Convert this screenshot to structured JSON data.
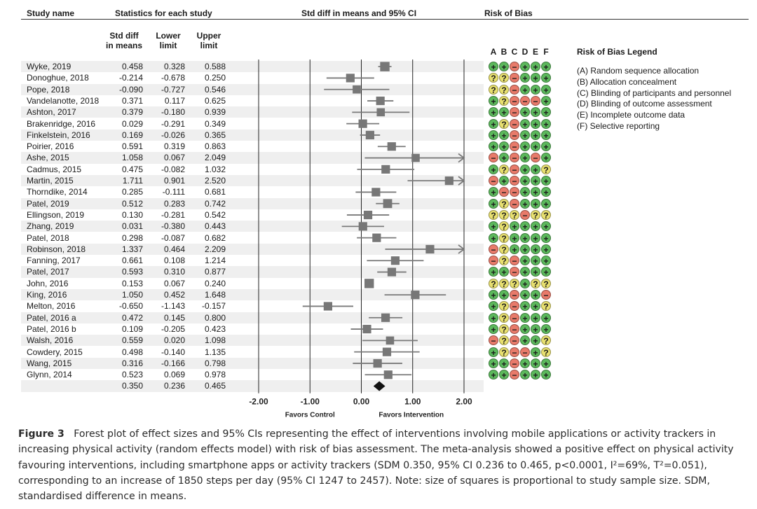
{
  "headers": {
    "study": "Study name",
    "stats": "Statistics for each study",
    "ci": "Std diff in means and 95% CI",
    "rob": "Risk of Bias",
    "smd": "Std diff\nin means",
    "lower": "Lower\nlimit",
    "upper": "Upper\nlimit"
  },
  "colors": {
    "marker": "#777777",
    "line": "#7a7a7a",
    "band": "#efefef",
    "plus": "#5cb85c",
    "minus": "#e87a6a",
    "question": "#e8e070"
  },
  "chart_data": {
    "type": "forest",
    "title": "Std diff in means and 95% CI",
    "xlim": [
      -2.0,
      2.0
    ],
    "xticks": [
      "-2.00",
      "-1.00",
      "0.00",
      "1.00",
      "2.00"
    ],
    "xtick_values": [
      -2,
      -1,
      0,
      1,
      2
    ],
    "xlabel_left": "Favors Control",
    "xlabel_right": "Favors Intervention",
    "studies": [
      {
        "name": "Wyke, 2019",
        "smd": "0.458",
        "lower": "0.328",
        "upper": "0.588",
        "weight": 0.9
      },
      {
        "name": "Donoghue, 2018",
        "smd": "-0.214",
        "lower": "-0.678",
        "upper": "0.250",
        "weight": 0.7
      },
      {
        "name": "Pope, 2018",
        "smd": "-0.090",
        "lower": "-0.727",
        "upper": "0.546",
        "weight": 0.6
      },
      {
        "name": "Vandelanotte, 2018",
        "smd": "0.371",
        "lower": "0.117",
        "upper": "0.625",
        "weight": 0.7
      },
      {
        "name": "Ashton, 2017",
        "smd": "0.379",
        "lower": "-0.180",
        "upper": "0.939",
        "weight": 0.6
      },
      {
        "name": "Brakenridge, 2016",
        "smd": "0.029",
        "lower": "-0.291",
        "upper": "0.349",
        "weight": 0.7
      },
      {
        "name": "Finkelstein, 2016",
        "smd": "0.169",
        "lower": "-0.026",
        "upper": "0.365",
        "weight": 0.7
      },
      {
        "name": "Poirier, 2016",
        "smd": "0.591",
        "lower": "0.319",
        "upper": "0.863",
        "weight": 0.7
      },
      {
        "name": "Ashe, 2015",
        "smd": "1.058",
        "lower": "0.067",
        "upper": "2.049",
        "weight": 0.6
      },
      {
        "name": "Cadmus, 2015",
        "smd": "0.475",
        "lower": "-0.082",
        "upper": "1.032",
        "weight": 0.7
      },
      {
        "name": "Martin, 2015",
        "smd": "1.711",
        "lower": "0.901",
        "upper": "2.520",
        "weight": 0.7
      },
      {
        "name": "Thorndike, 2014",
        "smd": "0.285",
        "lower": "-0.111",
        "upper": "0.681",
        "weight": 0.7
      },
      {
        "name": "Patel, 2019",
        "smd": "0.512",
        "lower": "0.283",
        "upper": "0.742",
        "weight": 0.8
      },
      {
        "name": "Ellingson, 2019",
        "smd": "0.130",
        "lower": "-0.281",
        "upper": "0.542",
        "weight": 0.7
      },
      {
        "name": "Zhang, 2019",
        "smd": "0.031",
        "lower": "-0.380",
        "upper": "0.443",
        "weight": 0.7
      },
      {
        "name": "Patel, 2018",
        "smd": "0.298",
        "lower": "-0.087",
        "upper": "0.682",
        "weight": 0.7
      },
      {
        "name": "Robinson, 2018",
        "smd": "1.337",
        "lower": "0.464",
        "upper": "2.209",
        "weight": 0.7
      },
      {
        "name": "Fanning, 2017",
        "smd": "0.661",
        "lower": "0.108",
        "upper": "1.214",
        "weight": 0.7
      },
      {
        "name": "Patel, 2017",
        "smd": "0.593",
        "lower": "0.310",
        "upper": "0.877",
        "weight": 0.7
      },
      {
        "name": "John, 2016",
        "smd": "0.153",
        "lower": "0.067",
        "upper": "0.240",
        "weight": 0.9
      },
      {
        "name": "King, 2016",
        "smd": "1.050",
        "lower": "0.452",
        "upper": "1.648",
        "weight": 0.7
      },
      {
        "name": "Melton, 2016",
        "smd": "-0.650",
        "lower": "-1.143",
        "upper": "-0.157",
        "weight": 0.7
      },
      {
        "name": "Patel, 2016 a",
        "smd": "0.472",
        "lower": "0.145",
        "upper": "0.800",
        "weight": 0.7
      },
      {
        "name": "Patel, 2016 b",
        "smd": "0.109",
        "lower": "-0.205",
        "upper": "0.423",
        "weight": 0.7
      },
      {
        "name": "Walsh, 2016",
        "smd": "0.559",
        "lower": "0.020",
        "upper": "1.098",
        "weight": 0.6
      },
      {
        "name": "Cowdery, 2015",
        "smd": "0.498",
        "lower": "-0.140",
        "upper": "1.135",
        "weight": 0.7
      },
      {
        "name": "Wang, 2015",
        "smd": "0.316",
        "lower": "-0.166",
        "upper": "0.798",
        "weight": 0.7
      },
      {
        "name": "Glynn, 2014",
        "smd": "0.523",
        "lower": "0.069",
        "upper": "0.978",
        "weight": 0.7
      }
    ],
    "summary": {
      "smd": "0.350",
      "lower": "0.236",
      "upper": "0.465"
    }
  },
  "rob": {
    "columns": [
      "A",
      "B",
      "C",
      "D",
      "E",
      "F"
    ],
    "rows": [
      [
        "+",
        "+",
        "-",
        "+",
        "+",
        "+"
      ],
      [
        "?",
        "?",
        "-",
        "+",
        "+",
        "+"
      ],
      [
        "?",
        "?",
        "-",
        "+",
        "+",
        "+"
      ],
      [
        "+",
        "?",
        "-",
        "-",
        "-",
        "+"
      ],
      [
        "+",
        "+",
        "-",
        "+",
        "+",
        "+"
      ],
      [
        "+",
        "?",
        "-",
        "+",
        "+",
        "+"
      ],
      [
        "+",
        "+",
        "-",
        "+",
        "+",
        "+"
      ],
      [
        "+",
        "+",
        "-",
        "+",
        "+",
        "+"
      ],
      [
        "-",
        "+",
        "-",
        "+",
        "-",
        "+"
      ],
      [
        "+",
        "?",
        "-",
        "+",
        "+",
        "?"
      ],
      [
        "-",
        "+",
        "-",
        "+",
        "+",
        "+"
      ],
      [
        "+",
        "-",
        "-",
        "+",
        "+",
        "+"
      ],
      [
        "+",
        "?",
        "-",
        "+",
        "+",
        "+"
      ],
      [
        "?",
        "?",
        "?",
        "-",
        "?",
        "?"
      ],
      [
        "+",
        "?",
        "+",
        "+",
        "+",
        "+"
      ],
      [
        "+",
        "?",
        "+",
        "+",
        "+",
        "+"
      ],
      [
        "-",
        "?",
        "+",
        "+",
        "+",
        "+"
      ],
      [
        "-",
        "?",
        "-",
        "+",
        "+",
        "+"
      ],
      [
        "+",
        "+",
        "-",
        "+",
        "+",
        "+"
      ],
      [
        "?",
        "?",
        "?",
        "+",
        "?",
        "?"
      ],
      [
        "+",
        "+",
        "-",
        "+",
        "+",
        "-"
      ],
      [
        "+",
        "?",
        "-",
        "+",
        "+",
        "?"
      ],
      [
        "+",
        "?",
        "-",
        "+",
        "+",
        "+"
      ],
      [
        "+",
        "?",
        "-",
        "+",
        "+",
        "+"
      ],
      [
        "-",
        "?",
        "-",
        "+",
        "+",
        "?"
      ],
      [
        "+",
        "?",
        "-",
        "-",
        "+",
        "?"
      ],
      [
        "+",
        "+",
        "-",
        "+",
        "+",
        "+"
      ],
      [
        "+",
        "+",
        "-",
        "+",
        "+",
        "+"
      ]
    ]
  },
  "legend": {
    "title": "Risk of Bias Legend",
    "items": [
      "(A) Random sequence allocation",
      "(B) Allocation concealment",
      "(C) Blinding of participants and personnel",
      "(D) Blinding of outcome assessment",
      "(E) Incomplete outcome data",
      "(F) Selective reporting"
    ]
  },
  "caption": {
    "label": "Figure 3",
    "text": "Forest plot of effect sizes and 95% CIs representing the effect of interventions involving mobile applications or activity trackers in increasing physical activity (random effects model) with risk of bias assessment. The meta-analysis showed a positive effect on physical activity favouring interventions, including smartphone apps or activity trackers (SDM 0.350, 95% CI 0.236 to 0.465, p<0.0001, I²=69%, T²=0.051), corresponding to an increase of 1850 steps per day (95% CI 1247 to 2457). Note: size of squares is proportional to study sample size. SDM, standardised difference in means."
  }
}
